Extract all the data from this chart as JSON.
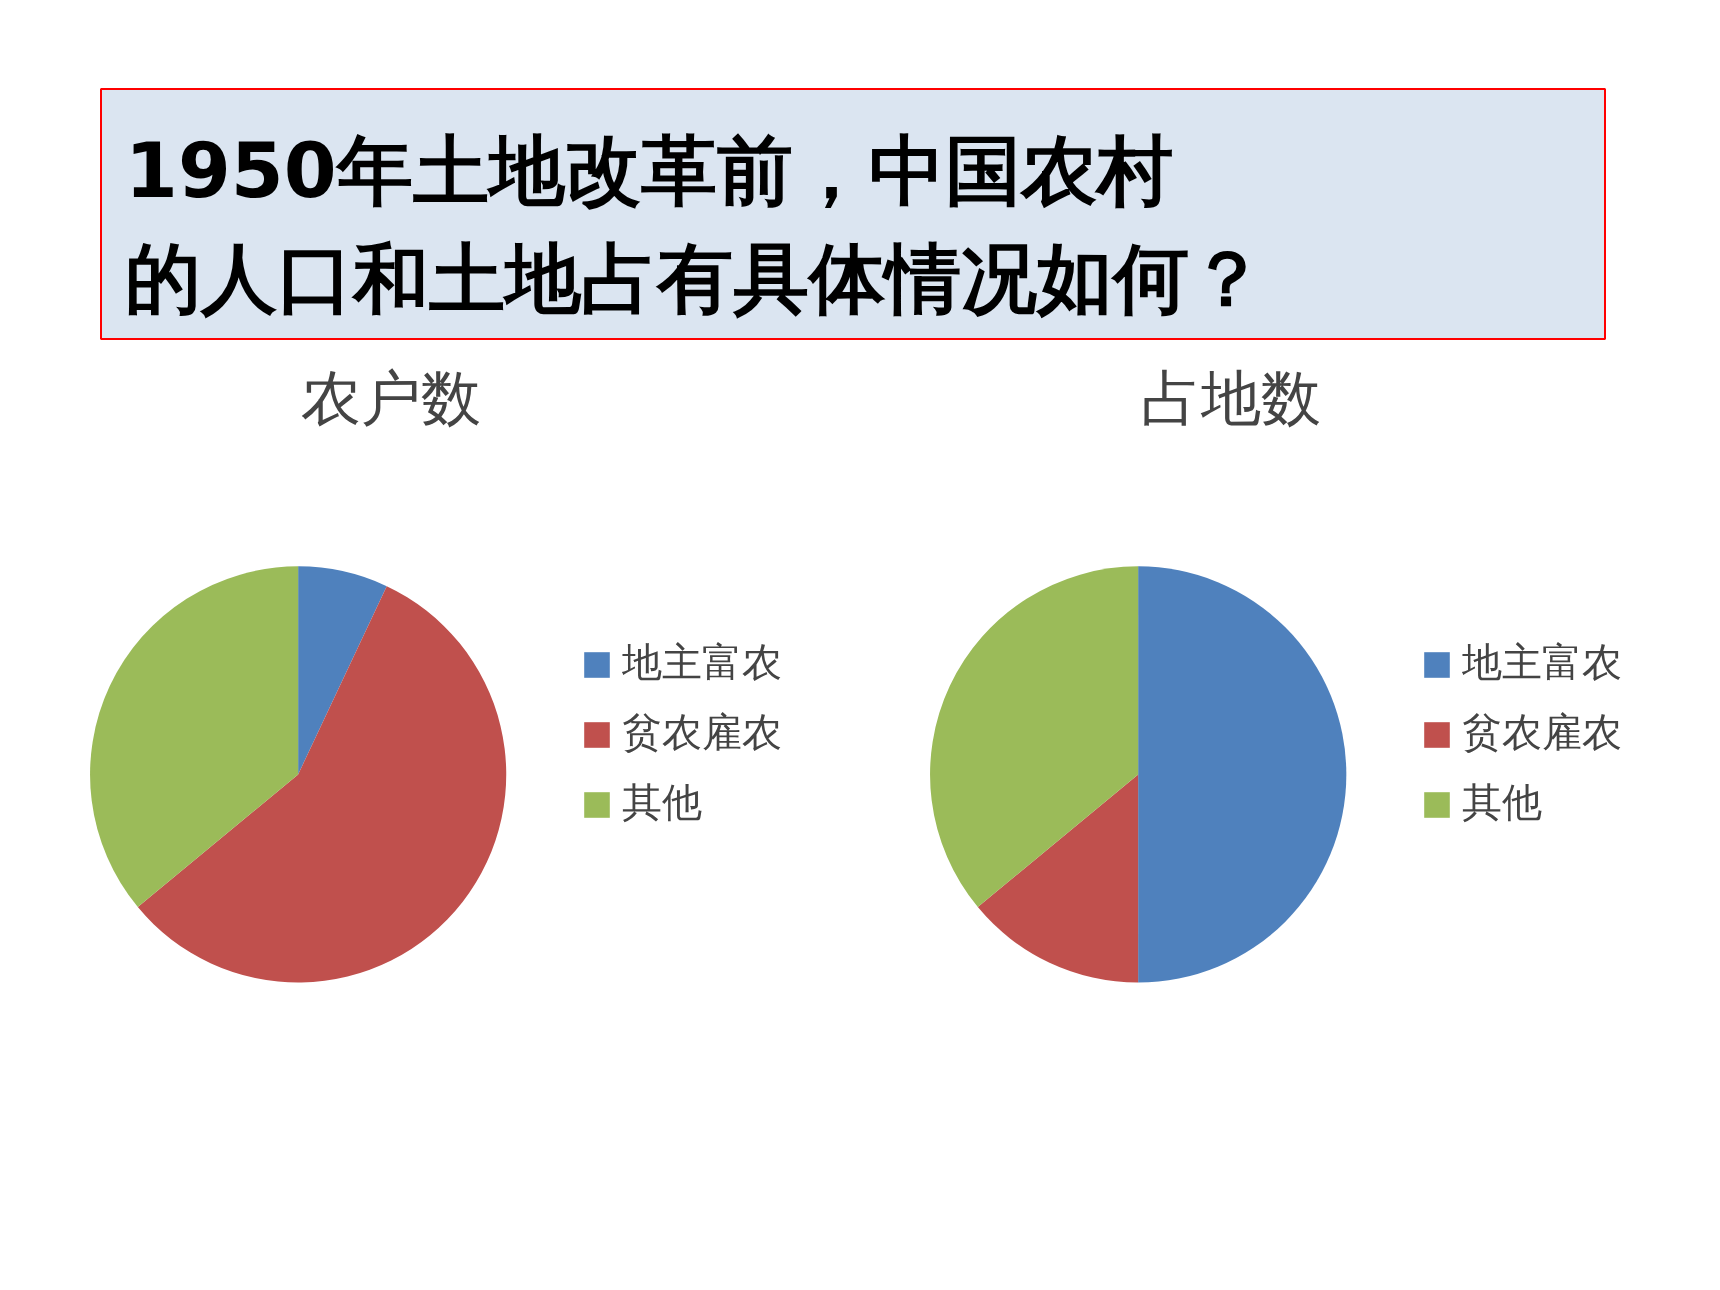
{
  "chart_data": [
    {
      "type": "other",
      "title": "1950年土地改革前，中国农村的人口和土地占有具体情况如何？"
    },
    {
      "type": "pie",
      "title": "农户数",
      "categories": [
        "地主富农",
        "贫农雇农",
        "其他"
      ],
      "values": [
        7,
        57,
        36
      ],
      "colors": [
        "#4f81bd",
        "#c0504d",
        "#9bbb59"
      ],
      "legend": "right"
    },
    {
      "type": "pie",
      "title": "占地数",
      "categories": [
        "地主富农",
        "贫农雇农",
        "其他"
      ],
      "values": [
        50,
        14,
        36
      ],
      "colors": [
        "#4f81bd",
        "#c0504d",
        "#9bbb59"
      ],
      "legend": "right"
    }
  ]
}
